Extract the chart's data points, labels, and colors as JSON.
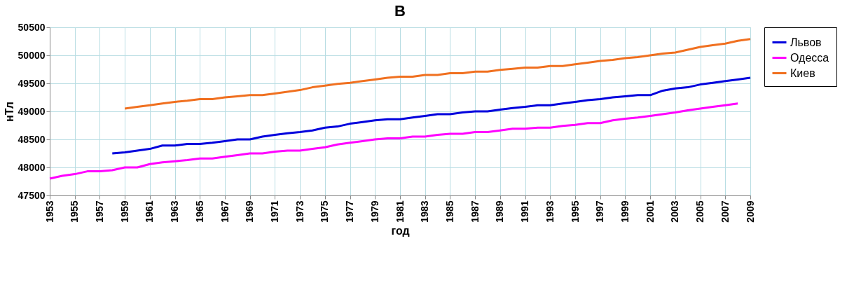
{
  "chart_data": {
    "type": "line",
    "title": "В",
    "xlabel": "год",
    "ylabel": "нТл",
    "x": [
      1953,
      1954,
      1955,
      1956,
      1957,
      1958,
      1959,
      1960,
      1961,
      1962,
      1963,
      1964,
      1965,
      1966,
      1967,
      1968,
      1969,
      1970,
      1971,
      1972,
      1973,
      1974,
      1975,
      1976,
      1977,
      1978,
      1979,
      1980,
      1981,
      1982,
      1983,
      1984,
      1985,
      1986,
      1987,
      1988,
      1989,
      1990,
      1991,
      1992,
      1993,
      1994,
      1995,
      1996,
      1997,
      1998,
      1999,
      2000,
      2001,
      2002,
      2003,
      2004,
      2005,
      2006,
      2007,
      2008,
      2009
    ],
    "series": [
      {
        "name": "Львов",
        "color": "#0000dd",
        "values": [
          null,
          null,
          null,
          null,
          null,
          48250,
          48270,
          48300,
          48330,
          48390,
          48390,
          48420,
          48420,
          48440,
          48470,
          48500,
          48500,
          48550,
          48580,
          48610,
          48630,
          48660,
          48710,
          48730,
          48780,
          48810,
          48840,
          48860,
          48860,
          48890,
          48920,
          48950,
          48950,
          48980,
          49000,
          49000,
          49030,
          49060,
          49080,
          49110,
          49110,
          49140,
          49170,
          49200,
          49220,
          49250,
          49270,
          49290,
          49290,
          49370,
          49410,
          49430,
          49480,
          49510,
          49540,
          49570,
          49600
        ]
      },
      {
        "name": "Одесса",
        "color": "#ff00ff",
        "values": [
          47800,
          47850,
          47880,
          47930,
          47930,
          47950,
          48000,
          48000,
          48060,
          48090,
          48110,
          48130,
          48160,
          48160,
          48190,
          48220,
          48250,
          48250,
          48280,
          48300,
          48300,
          48330,
          48360,
          48410,
          48440,
          48470,
          48500,
          48520,
          48520,
          48550,
          48550,
          48580,
          48600,
          48600,
          48630,
          48630,
          48660,
          48690,
          48690,
          48710,
          48710,
          48740,
          48760,
          48790,
          48790,
          48840,
          48870,
          48890,
          48920,
          48950,
          48980,
          49020,
          49050,
          49080,
          49110,
          49140,
          null
        ]
      },
      {
        "name": "Киев",
        "color": "#f07020",
        "values": [
          null,
          null,
          null,
          null,
          null,
          null,
          49050,
          49080,
          49110,
          49140,
          49170,
          49190,
          49220,
          49220,
          49250,
          49270,
          49290,
          49290,
          49320,
          49350,
          49380,
          49430,
          49460,
          49490,
          49510,
          49540,
          49570,
          49600,
          49620,
          49620,
          49650,
          49650,
          49680,
          49680,
          49710,
          49710,
          49740,
          49760,
          49780,
          49780,
          49810,
          49810,
          49840,
          49870,
          49900,
          49920,
          49950,
          49970,
          50000,
          50030,
          50050,
          50100,
          50150,
          50180,
          50210,
          50260,
          50290
        ]
      }
    ],
    "xlim": [
      1953,
      2009
    ],
    "xticks": [
      1953,
      1955,
      1957,
      1959,
      1961,
      1963,
      1965,
      1967,
      1969,
      1971,
      1973,
      1975,
      1977,
      1979,
      1981,
      1983,
      1985,
      1987,
      1989,
      1991,
      1993,
      1995,
      1997,
      1999,
      2001,
      2003,
      2005,
      2007,
      2009
    ],
    "ylim": [
      47500,
      50500
    ],
    "yticks": [
      47500,
      48000,
      48500,
      49000,
      49500,
      50000,
      50500
    ],
    "grid": true,
    "legend": "right",
    "marker": "none",
    "line_style": "solid"
  }
}
